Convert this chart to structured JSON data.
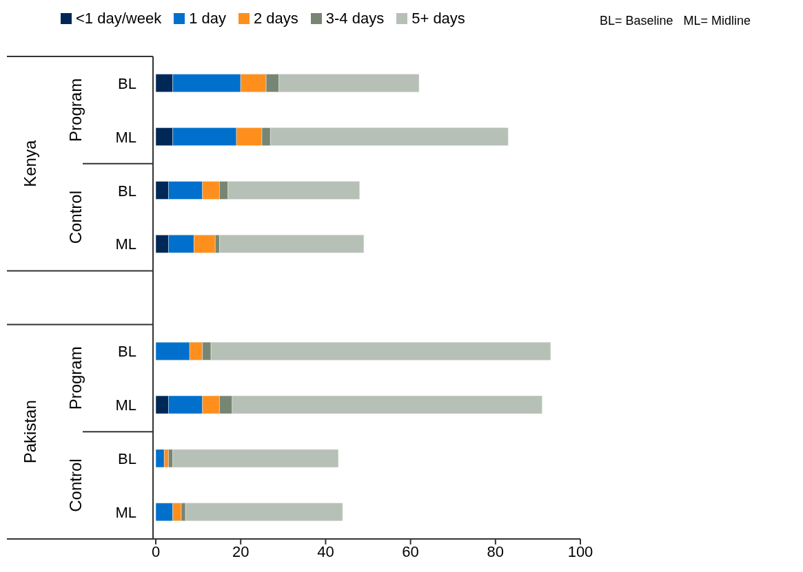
{
  "chart_data": {
    "type": "bar",
    "orientation": "horizontal",
    "stacked": true,
    "categories": [
      "BL",
      "ML",
      "BL",
      "ML",
      null,
      "BL",
      "ML",
      "BL",
      "ML"
    ],
    "series": [
      {
        "name": "<1 day/week",
        "color": "#002856",
        "values": [
          4,
          4,
          3,
          3,
          null,
          0,
          3,
          0,
          0
        ]
      },
      {
        "name": "1 day",
        "color": "#0070cc",
        "values": [
          16,
          15,
          8,
          6,
          null,
          8,
          8,
          2,
          4
        ]
      },
      {
        "name": "2 days",
        "color": "#ff8f1c",
        "values": [
          6,
          6,
          4,
          5,
          null,
          3,
          4,
          1,
          2
        ]
      },
      {
        "name": "3-4 days",
        "color": "#778673",
        "values": [
          3,
          2,
          2,
          1,
          null,
          2,
          3,
          1,
          1
        ]
      },
      {
        "name": "5+ days",
        "color": "#b7c0b6",
        "values": [
          33,
          56,
          31,
          34,
          null,
          80,
          73,
          39,
          37
        ]
      }
    ],
    "xlim": [
      0,
      100
    ],
    "xticks": [
      0,
      20,
      40,
      60,
      80,
      100
    ],
    "legend": "top",
    "annotations": [
      "BL= Baseline   ML= Midline",
      "Kenya",
      "Pakistan",
      "Program",
      "Control",
      "Program",
      "Control"
    ]
  }
}
